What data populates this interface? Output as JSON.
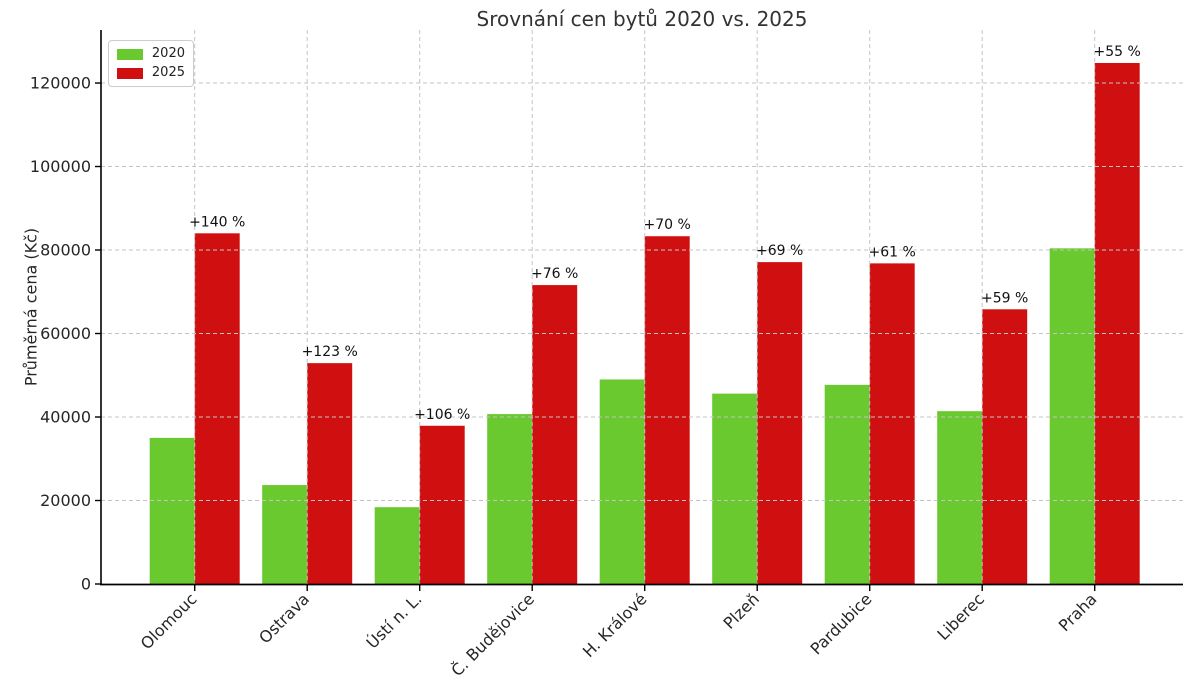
{
  "title": "Srovnání cen bytů 2020 vs. 2025",
  "colors": {
    "green_2020": "#69c92e",
    "red_2025": "#d01010",
    "grid": "#c4c4c4",
    "axis": "#000000",
    "text": "#262626",
    "title_text": "#333333"
  },
  "legend": {
    "items": [
      {
        "label": "2020",
        "color": "#69c92e"
      },
      {
        "label": "2025",
        "color": "#d01010"
      }
    ]
  },
  "chart_data": {
    "type": "bar",
    "title": "Srovnání cen bytů 2020 vs. 2025",
    "xlabel": "",
    "ylabel": "Průměrná cena (Kč)",
    "categories": [
      "Olomouc",
      "Ostrava",
      "Ústí n. L.",
      "Č. Budějovice",
      "H. Králové",
      "Plzeň",
      "Pardubice",
      "Liberec",
      "Praha"
    ],
    "series": [
      {
        "name": "2020",
        "color": "#69c92e",
        "values": [
          35000,
          23700,
          18400,
          40700,
          49000,
          45600,
          47700,
          41400,
          80400
        ]
      },
      {
        "name": "2025",
        "color": "#d01010",
        "values": [
          84000,
          52900,
          37900,
          71600,
          83300,
          77100,
          76800,
          65800,
          124800
        ]
      }
    ],
    "annotations": [
      "+140 %",
      "+123 %",
      "+106 %",
      "+76 %",
      "+70 %",
      "+69 %",
      "+61 %",
      "+59 %",
      "+55 %"
    ],
    "yticks": [
      0,
      20000,
      40000,
      60000,
      80000,
      100000,
      120000
    ],
    "ylim": [
      0,
      132700
    ],
    "grid": "dashed, both axes, drawn above bars",
    "legend_position": "upper left"
  }
}
